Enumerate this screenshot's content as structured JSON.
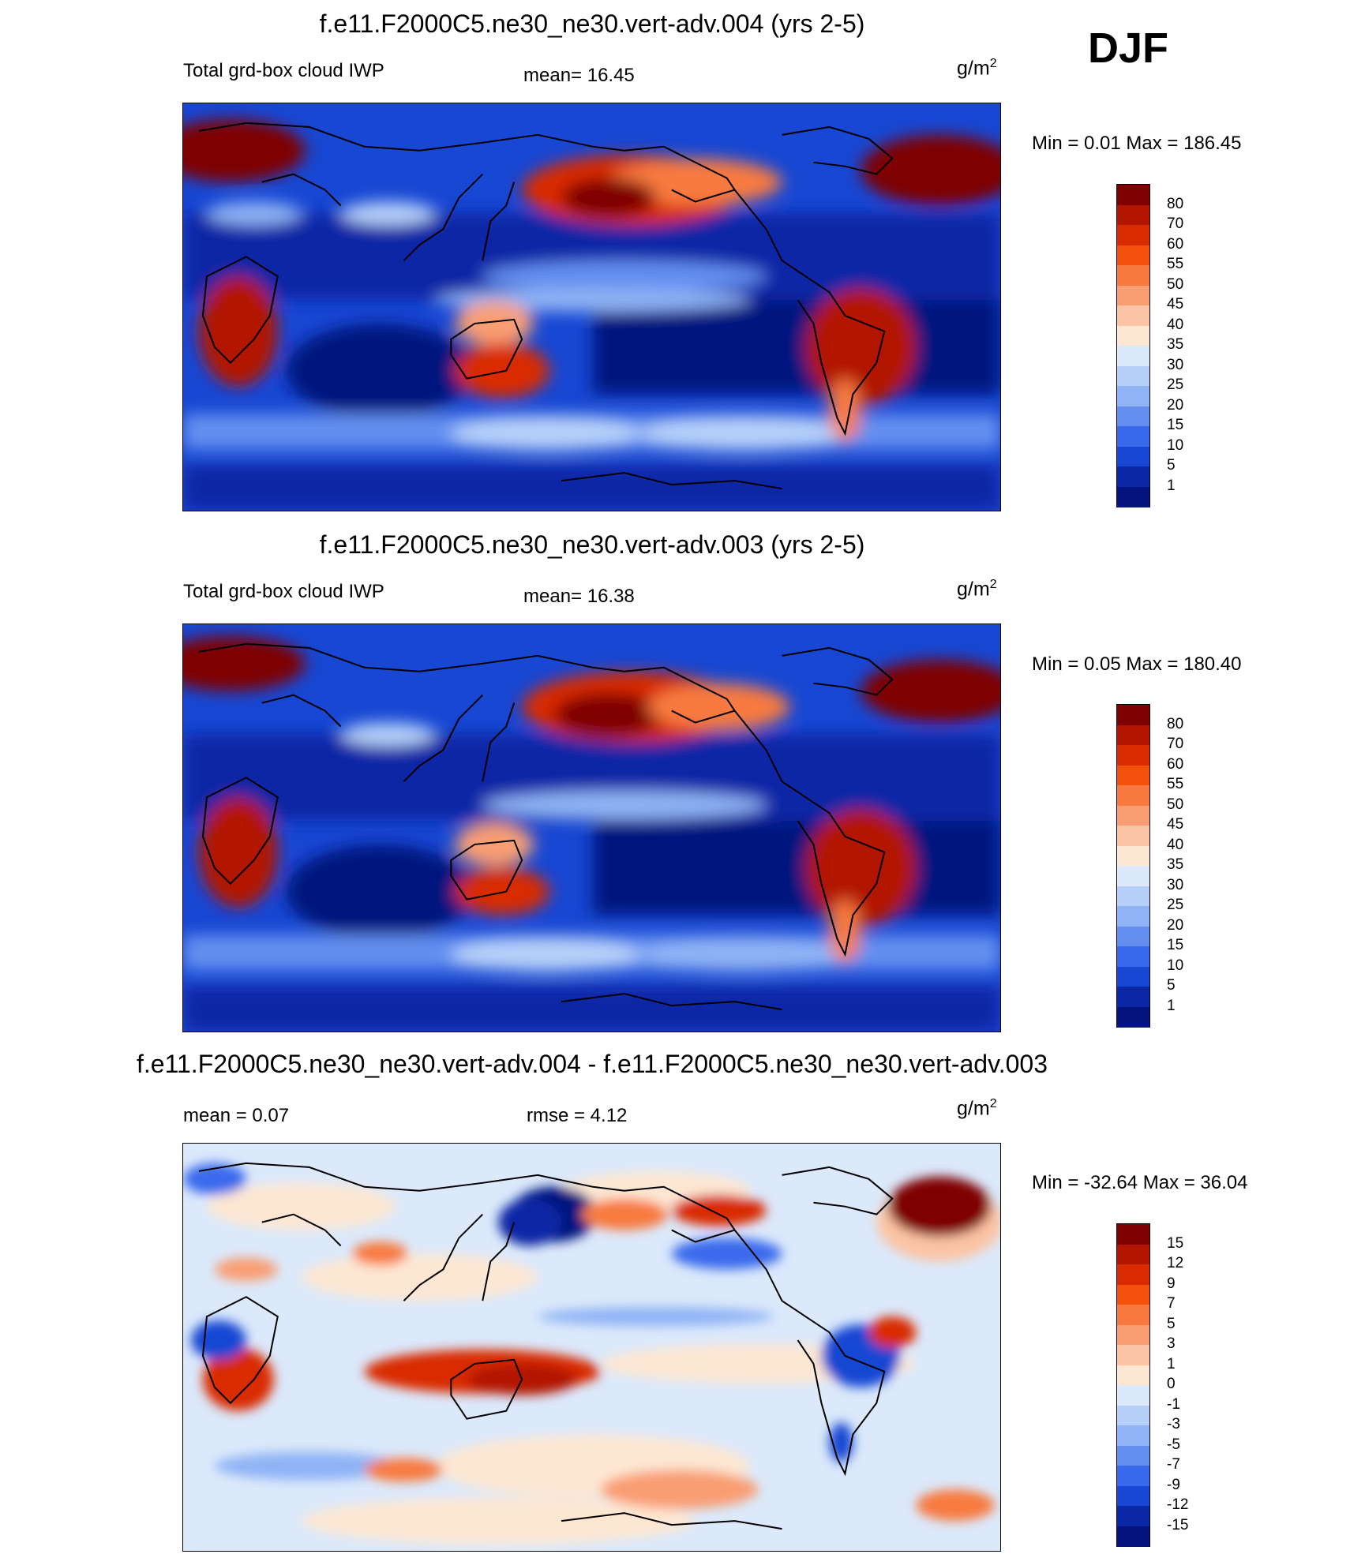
{
  "season": "DJF",
  "units": {
    "base": "g/m",
    "exp": "2"
  },
  "panels": [
    {
      "title": "f.e11.F2000C5.ne30_ne30.vert-adv.004 (yrs 2-5)",
      "left_label": "Total grd-box cloud IWP",
      "center_label": "mean=  16.45",
      "minmax": "Min =    0.01 Max = 186.45",
      "colorbar": "abs"
    },
    {
      "title": "f.e11.F2000C5.ne30_ne30.vert-adv.003 (yrs 2-5)",
      "left_label": "Total grd-box cloud IWP",
      "center_label": "mean=  16.38",
      "minmax": "Min =    0.05 Max = 180.40",
      "colorbar": "abs"
    },
    {
      "title": "f.e11.F2000C5.ne30_ne30.vert-adv.004 - f.e11.F2000C5.ne30_ne30.vert-adv.003",
      "left_label": "mean =    0.07",
      "center_label": "rmse =    4.12",
      "minmax": "Min = -32.64 Max =  36.04",
      "colorbar": "diff"
    }
  ],
  "colorbars": {
    "abs": {
      "labels": [
        "80",
        "70",
        "60",
        "55",
        "50",
        "45",
        "40",
        "35",
        "30",
        "25",
        "20",
        "15",
        "10",
        "5",
        "1"
      ],
      "colors": [
        "#7f0000",
        "#b21500",
        "#d92b00",
        "#f4520c",
        "#f87a40",
        "#f99e73",
        "#fbc4a4",
        "#fde7d3",
        "#dbe9fb",
        "#b6d0f9",
        "#8fb3f5",
        "#648ff0",
        "#3a6aec",
        "#1747d3",
        "#0a27a6",
        "#04137e"
      ]
    },
    "diff": {
      "labels": [
        "15",
        "12",
        "9",
        "7",
        "5",
        "3",
        "1",
        "0",
        "-1",
        "-3",
        "-5",
        "-7",
        "-9",
        "-12",
        "-15"
      ],
      "colors": [
        "#7f0000",
        "#b21500",
        "#d92b00",
        "#f4520c",
        "#f87a40",
        "#f99e73",
        "#fbc4a4",
        "#fde7d3",
        "#dbe9fb",
        "#b6d0f9",
        "#8fb3f5",
        "#648ff0",
        "#3a6aec",
        "#1747d3",
        "#0a27a6",
        "#04137e"
      ]
    }
  }
}
